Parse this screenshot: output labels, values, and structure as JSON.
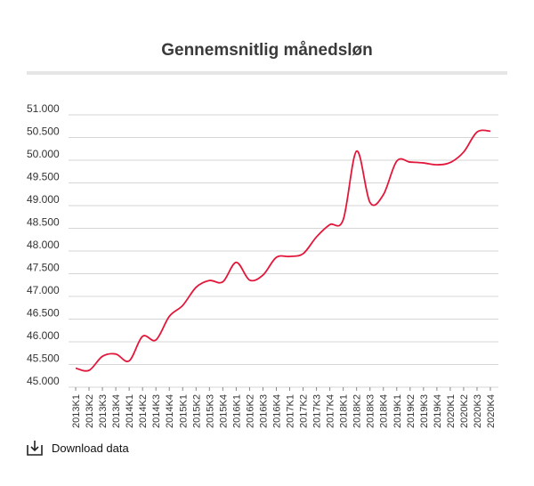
{
  "chart_data": {
    "type": "line",
    "title": "Gennemsnitlig månedsløn",
    "xlabel": "",
    "ylabel": "",
    "ylim": [
      45000,
      51000
    ],
    "yticks": [
      45000,
      45500,
      46000,
      46500,
      47000,
      47500,
      48000,
      48500,
      49000,
      49500,
      50000,
      50500,
      51000
    ],
    "ytick_labels": [
      "45.000",
      "45.500",
      "46.000",
      "46.500",
      "47.000",
      "47.500",
      "48.000",
      "48.500",
      "49.000",
      "49.500",
      "50.000",
      "50.500",
      "51.000"
    ],
    "categories": [
      "2013K1",
      "2013K2",
      "2013K3",
      "2013K4",
      "2014K1",
      "2014K2",
      "2014K3",
      "2014K4",
      "2015K1",
      "2015K2",
      "2015K3",
      "2015K4",
      "2016K1",
      "2016K2",
      "2016K3",
      "2016K4",
      "2017K1",
      "2017K2",
      "2017K3",
      "2017K4",
      "2018K1",
      "2018K2",
      "2018K3",
      "2018K4",
      "2019K1",
      "2019K2",
      "2019K3",
      "2019K4",
      "2020K1",
      "2020K2",
      "2020K3",
      "2020K4"
    ],
    "series": [
      {
        "values": [
          45420,
          45370,
          45680,
          45730,
          45580,
          46120,
          46040,
          46560,
          46800,
          47200,
          47350,
          47320,
          47750,
          47360,
          47470,
          47860,
          47880,
          47940,
          48310,
          48580,
          48690,
          50200,
          49070,
          49240,
          49980,
          49960,
          49940,
          49900,
          49950,
          50180,
          50620,
          50640
        ],
        "color": "#e3173b"
      }
    ],
    "grid": true,
    "legend": "none"
  },
  "download": {
    "label": "Download data",
    "icon": "download-icon"
  }
}
